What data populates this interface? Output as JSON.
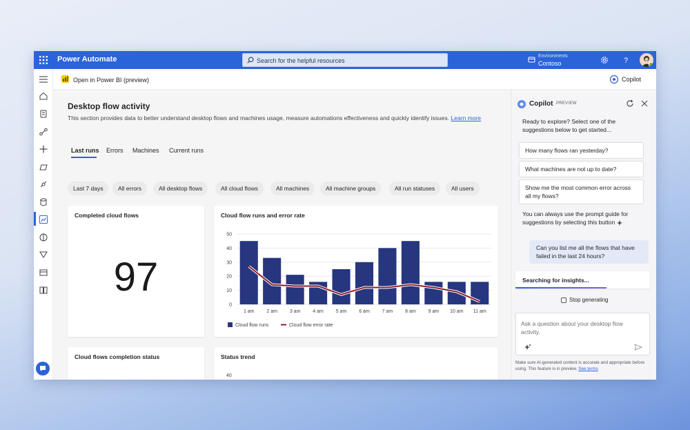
{
  "topbar": {
    "app_title": "Power Automate",
    "search_placeholder": "Search for the helpful resources",
    "env_label": "Environments",
    "env_value": "Contoso"
  },
  "cmdbar": {
    "open_powerbi": "Open in Power BI (preview)",
    "copilot_button": "Copilot"
  },
  "page": {
    "title": "Desktop flow activity",
    "description": "This section provides data to better understand desktop flows and machines usage, measure automations effectiveness and quickly identify issues.",
    "learn_more": "Learn more",
    "tabs": [
      "Last runs",
      "Errors",
      "Machines",
      "Current runs"
    ],
    "filters": [
      "Last 7 days",
      "All errors",
      "All desktop flows",
      "All cloud flows",
      "All machines",
      "All machine groups",
      "All run statuses",
      "All users"
    ]
  },
  "cards": {
    "completed_title": "Completed cloud flows",
    "completed_value": "97",
    "runs_title": "Cloud flow runs and error rate",
    "completion_status_title": "Cloud flows completion status",
    "status_trend_title": "Status trend",
    "status_trend_first_tick": "40"
  },
  "chart_data": {
    "type": "bar",
    "title": "Cloud flow runs and error rate",
    "categories": [
      "1 am",
      "2 am",
      "3 am",
      "4 am",
      "5 am",
      "6 am",
      "7 am",
      "8 am",
      "9 am",
      "10 am",
      "11 am"
    ],
    "series": [
      {
        "name": "Cloud flow runs",
        "type": "bar",
        "color": "#26367f",
        "values": [
          45,
          33,
          21,
          16,
          25,
          30,
          40,
          45,
          16,
          16,
          16
        ]
      },
      {
        "name": "Cloud flow error rate",
        "type": "line",
        "color": "#8b1f2c",
        "values": [
          27,
          14,
          13,
          13,
          7,
          12,
          12,
          14,
          12,
          9,
          2
        ]
      }
    ],
    "ylim": [
      0,
      50
    ],
    "yticks": [
      0,
      10,
      20,
      30,
      40,
      50
    ],
    "grid": true,
    "legend": "bottom-left"
  },
  "copilot": {
    "title": "Copilot",
    "badge": "PREVIEW",
    "intro": "Ready to explore? Select one of the suggestions below to get started...",
    "suggestions": [
      "How many flows ran yesterday?",
      "What machines are not up to date?",
      "Show me the most common error across all my flows?"
    ],
    "guide": "You can always use the prompt guide for suggestions by selecting this button",
    "user_message": "Can you list me all the flows that have failed in the last 24 hours?",
    "searching": "Searching for insights...",
    "stop_generating": "Stop generating",
    "ask_placeholder": "Ask a question about your desktop flow activity.",
    "disclaimer": "Make sure AI-generated content is accurate and appropriate before using. This feature is in preview.",
    "see_terms": "See terms"
  },
  "colors": {
    "brand": "#2b63d9",
    "bar": "#26367f",
    "line": "#8b1f2c"
  }
}
